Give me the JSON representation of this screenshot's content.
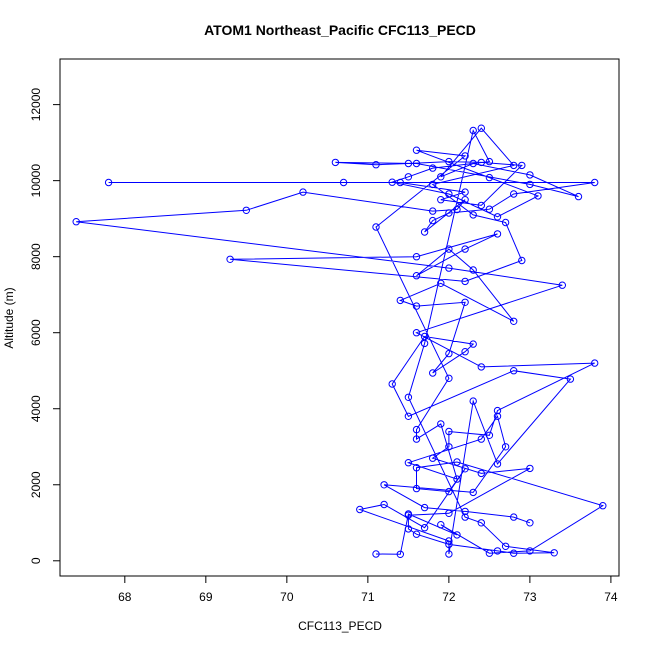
{
  "chart_data": {
    "type": "line",
    "title": "ATOM1 Northeast_Pacific CFC113_PECD",
    "xlabel": "CFC113_PECD",
    "ylabel": "Altitude (m)",
    "xlim": [
      67.2,
      74.1
    ],
    "ylim": [
      -400,
      13200
    ],
    "xticks": [
      68,
      69,
      70,
      71,
      72,
      73,
      74
    ],
    "yticks": [
      0,
      2000,
      4000,
      6000,
      8000,
      10000,
      12000
    ],
    "grid": false,
    "line_color": "#0000ff",
    "marker": "open-circle",
    "series": [
      {
        "points": [
          [
            71.1,
            180
          ],
          [
            71.4,
            170
          ],
          [
            71.5,
            1230
          ],
          [
            72.1,
            680
          ],
          [
            71.9,
            950
          ],
          [
            72.5,
            200
          ],
          [
            73.0,
            260
          ],
          [
            73.9,
            1450
          ],
          [
            72.1,
            2600
          ],
          [
            71.6,
            2450
          ],
          [
            71.6,
            1900
          ],
          [
            72.0,
            1820
          ],
          [
            72.2,
            2420
          ],
          [
            71.7,
            870
          ],
          [
            71.2,
            1480
          ],
          [
            70.9,
            1350
          ],
          [
            72.0,
            520
          ],
          [
            72.0,
            180
          ],
          [
            72.3,
            4200
          ],
          [
            72.6,
            2550
          ],
          [
            73.5,
            4780
          ],
          [
            72.8,
            5000
          ],
          [
            71.5,
            3800
          ],
          [
            71.3,
            4650
          ],
          [
            71.7,
            5900
          ],
          [
            72.3,
            5700
          ],
          [
            72.2,
            5500
          ],
          [
            71.8,
            4940
          ],
          [
            72.0,
            5450
          ],
          [
            72.2,
            6800
          ],
          [
            71.6,
            6700
          ],
          [
            71.4,
            6850
          ],
          [
            71.9,
            7300
          ],
          [
            72.8,
            6300
          ],
          [
            72.3,
            7650
          ],
          [
            72.0,
            8200
          ],
          [
            71.6,
            7500
          ],
          [
            72.2,
            8200
          ],
          [
            72.6,
            8600
          ],
          [
            71.6,
            8000
          ],
          [
            69.3,
            7930
          ],
          [
            72.2,
            7350
          ],
          [
            72.9,
            7900
          ],
          [
            72.7,
            8900
          ],
          [
            72.3,
            9100
          ],
          [
            71.8,
            9900
          ],
          [
            72.8,
            10400
          ],
          [
            72.4,
            11380
          ],
          [
            71.9,
            10100
          ],
          [
            72.3,
            10450
          ],
          [
            73.0,
            10150
          ],
          [
            73.6,
            9580
          ],
          [
            73.0,
            9900
          ],
          [
            71.6,
            10450
          ],
          [
            70.6,
            10480
          ],
          [
            71.1,
            10420
          ],
          [
            71.5,
            10450
          ],
          [
            72.0,
            10500
          ],
          [
            72.4,
            10480
          ],
          [
            72.9,
            10400
          ],
          [
            72.4,
            9350
          ],
          [
            71.9,
            9500
          ],
          [
            72.2,
            9700
          ],
          [
            71.4,
            9950
          ],
          [
            70.7,
            9950
          ],
          [
            67.8,
            9950
          ],
          [
            73.8,
            9950
          ],
          [
            72.8,
            9650
          ],
          [
            72.5,
            9250
          ],
          [
            72.0,
            9150
          ],
          [
            71.8,
            8950
          ],
          [
            71.7,
            8650
          ],
          [
            72.2,
            9500
          ],
          [
            72.1,
            9240
          ],
          [
            71.8,
            9200
          ],
          [
            70.2,
            9700
          ],
          [
            69.5,
            9220
          ],
          [
            67.4,
            8920
          ],
          [
            72.0,
            7700
          ],
          [
            73.4,
            7250
          ],
          [
            71.6,
            6000
          ],
          [
            72.4,
            5100
          ],
          [
            73.8,
            5200
          ],
          [
            72.6,
            3950
          ],
          [
            72.5,
            3300
          ],
          [
            72.0,
            3400
          ],
          [
            72.0,
            3000
          ],
          [
            71.8,
            2700
          ],
          [
            72.4,
            2300
          ],
          [
            73.0,
            2430
          ],
          [
            72.0,
            1250
          ],
          [
            71.5,
            1200
          ],
          [
            71.5,
            840
          ],
          [
            71.6,
            700
          ],
          [
            72.0,
            430
          ],
          [
            72.6,
            260
          ],
          [
            72.8,
            200
          ],
          [
            73.3,
            210
          ],
          [
            72.7,
            380
          ],
          [
            72.4,
            1000
          ],
          [
            72.2,
            1150
          ],
          [
            71.5,
            4300
          ],
          [
            71.7,
            5720
          ],
          [
            72.3,
            11320
          ],
          [
            72.5,
            10500
          ],
          [
            71.8,
            10330
          ],
          [
            71.5,
            10100
          ],
          [
            71.3,
            9960
          ],
          [
            72.0,
            9650
          ],
          [
            72.6,
            9050
          ],
          [
            73.1,
            9600
          ],
          [
            72.5,
            10080
          ],
          [
            71.6,
            10800
          ],
          [
            72.2,
            10650
          ],
          [
            71.1,
            8780
          ],
          [
            72.0,
            4800
          ],
          [
            71.6,
            3450
          ],
          [
            71.6,
            3200
          ],
          [
            71.9,
            3600
          ],
          [
            72.1,
            2150
          ],
          [
            71.5,
            2580
          ],
          [
            72.4,
            3200
          ],
          [
            72.6,
            3800
          ],
          [
            72.7,
            3000
          ],
          [
            72.3,
            1800
          ],
          [
            71.2,
            2000
          ],
          [
            71.7,
            1400
          ],
          [
            72.2,
            1300
          ],
          [
            72.8,
            1150
          ],
          [
            73.0,
            1000
          ]
        ]
      }
    ]
  }
}
